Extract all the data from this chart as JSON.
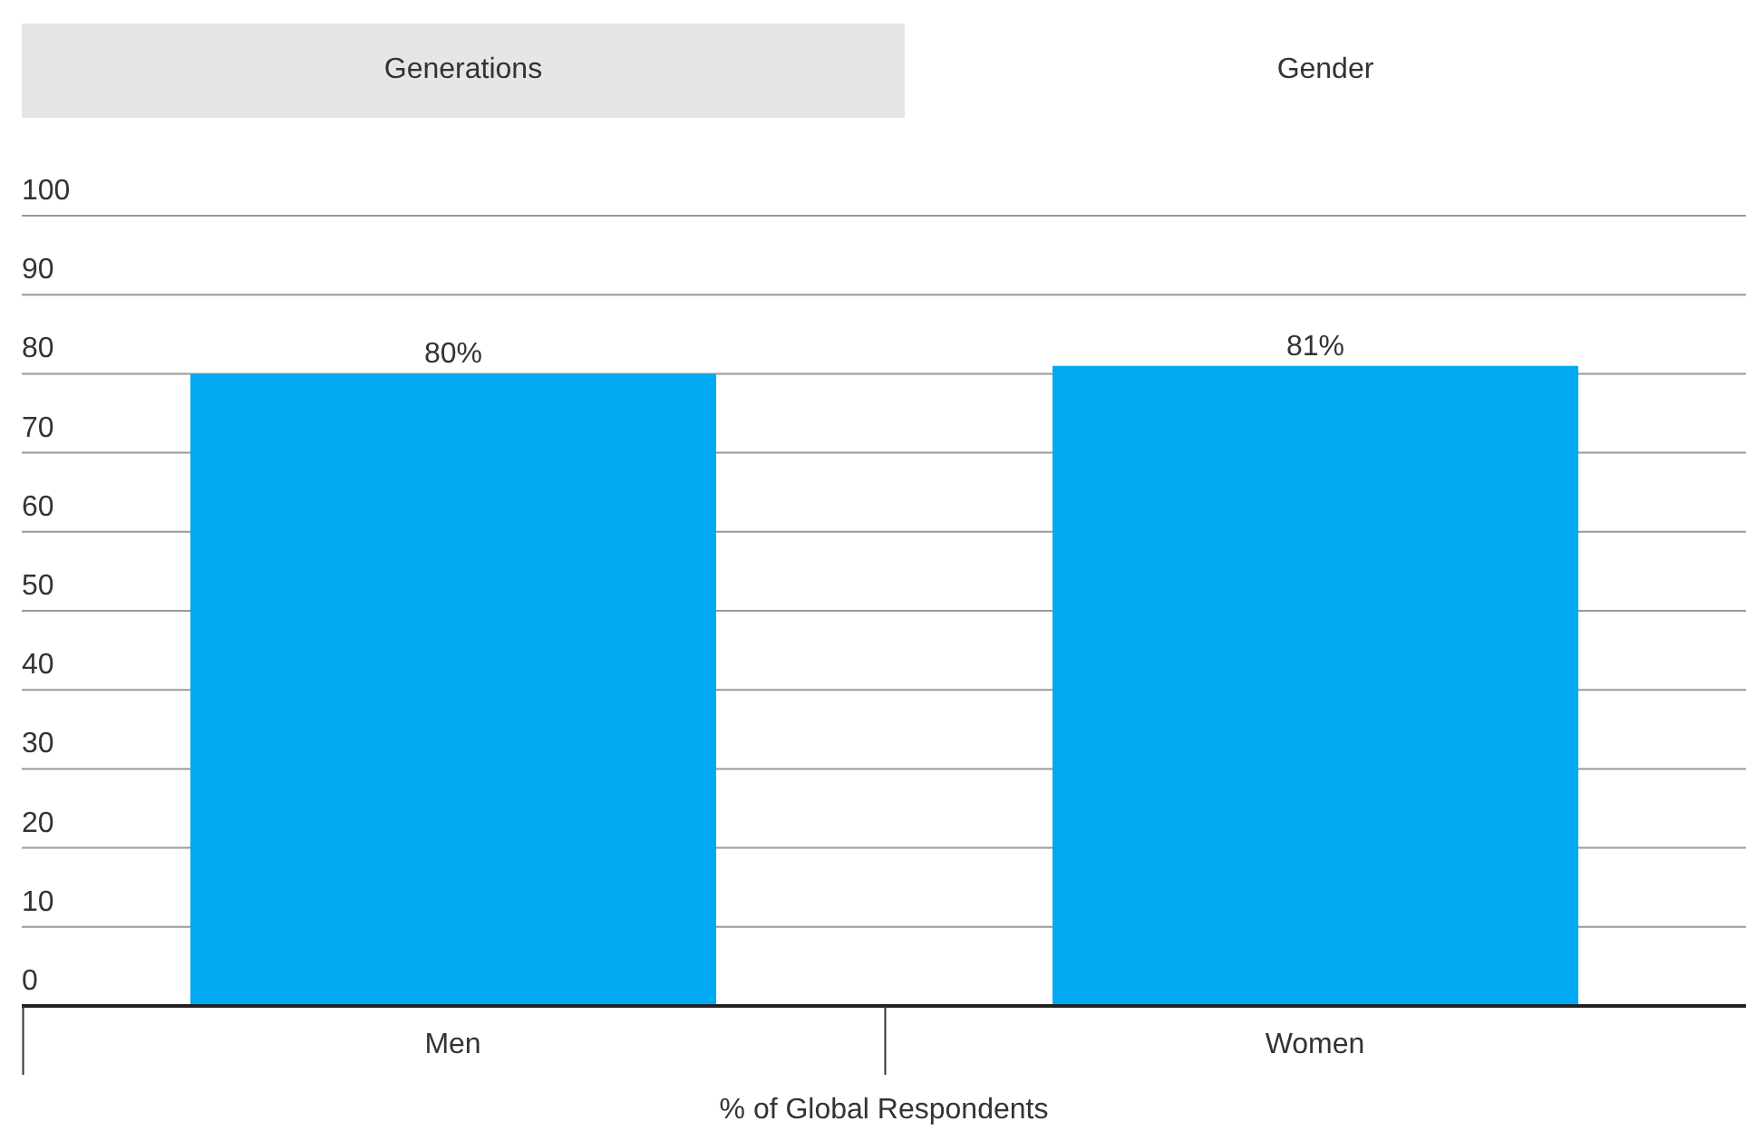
{
  "chart_data": {
    "type": "bar",
    "xlabel": "% of Global Respondents",
    "annotations": [
      "Generations",
      "Gender"
    ],
    "categories": [
      "Men",
      "Women"
    ],
    "values": [
      80,
      81
    ],
    "value_labels": [
      "80%",
      "81%"
    ],
    "color": "#00aaf2",
    "ylim": [
      0,
      100
    ],
    "yticks": [
      0,
      10,
      20,
      30,
      40,
      50,
      60,
      70,
      80,
      90,
      100
    ],
    "grid": "y"
  }
}
